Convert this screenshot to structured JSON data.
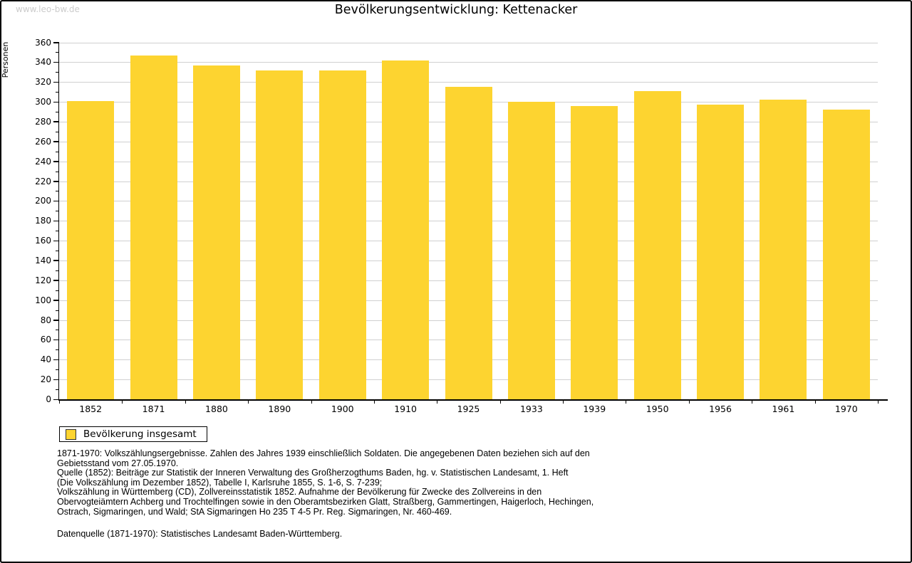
{
  "watermark": "www.leo-bw.de",
  "title": "Bevölkerungsentwicklung: Kettenacker",
  "legend": {
    "label": "Bevölkerung insgesamt"
  },
  "chart_data": {
    "type": "bar",
    "title": "Bevölkerungsentwicklung: Kettenacker",
    "categories": [
      "1852",
      "1871",
      "1880",
      "1890",
      "1900",
      "1910",
      "1925",
      "1933",
      "1939",
      "1950",
      "1956",
      "1961",
      "1970"
    ],
    "series": [
      {
        "name": "Bevölkerung insgesamt",
        "values": [
          301,
          347,
          337,
          332,
          332,
          342,
          315,
          300,
          296,
          311,
          297,
          302,
          292
        ]
      }
    ],
    "xlabel": "",
    "ylabel": "Personen",
    "ylim": [
      0,
      360
    ],
    "ytick_step": 20,
    "ytick_minor_step": 10,
    "grid": true,
    "legend_position": "bottom-left"
  },
  "footnotes": [
    "1871-1970: Volkszählungsergebnisse. Zahlen des Jahres 1939 einschließlich Soldaten. Die angegebenen Daten beziehen sich auf den",
    "Gebietsstand vom 27.05.1970.",
    "Quelle (1852): Beiträge zur Statistik der Inneren Verwaltung des Großherzogthums Baden, hg. v. Statistischen Landesamt, 1. Heft",
    "(Die Volkszählung im Dezember 1852), Tabelle I, Karlsruhe 1855, S. 1-6, S. 7-239;",
    "Volkszählung in Württemberg (CD), Zollvereinsstatistik 1852. Aufnahme der Bevölkerung für Zwecke des Zollvereins in den",
    "Obervogteiämtern Achberg und Trochtelfingen sowie in den Oberamtsbezirken Glatt, Straßberg, Gammertingen, Haigerloch, Hechingen,",
    "Ostrach, Sigmaringen, und Wald; StA Sigmaringen Ho 235 T 4-5 Pr. Reg. Sigmaringen, Nr. 460-469."
  ],
  "datenquelle": "Datenquelle (1871-1970): Statistisches Landesamt Baden-Württemberg.",
  "colors": {
    "bar": "#FDD430",
    "grid": "#D0D0D0",
    "axis": "#000000",
    "watermark": "#CCCCCC",
    "text": "#111111"
  }
}
